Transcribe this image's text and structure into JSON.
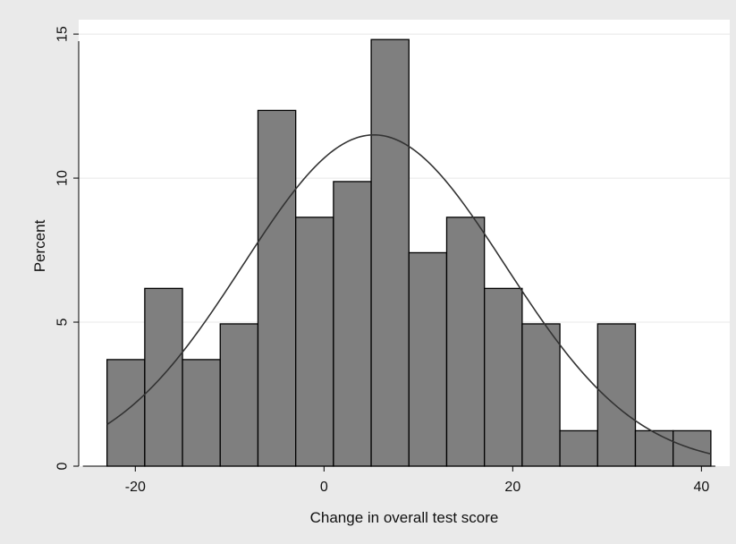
{
  "chart_data": {
    "type": "bar",
    "subtype": "histogram-with-normal-density-overlay",
    "xlabel": "Change in overall test score",
    "ylabel": "Percent",
    "xlim": [
      -26,
      43
    ],
    "ylim": [
      0,
      15.5
    ],
    "x_ticks": [
      -20,
      0,
      20,
      40
    ],
    "y_ticks": [
      0,
      5,
      10,
      15
    ],
    "grid": "horizontal",
    "bin_width": 4,
    "bins": [
      {
        "start": -23,
        "end": -19,
        "value": 3.7
      },
      {
        "start": -19,
        "end": -15,
        "value": 6.17
      },
      {
        "start": -15,
        "end": -11,
        "value": 3.7
      },
      {
        "start": -11,
        "end": -7,
        "value": 4.94
      },
      {
        "start": -7,
        "end": -3,
        "value": 12.35
      },
      {
        "start": -3,
        "end": 1,
        "value": 8.64
      },
      {
        "start": 1,
        "end": 5,
        "value": 9.88
      },
      {
        "start": 5,
        "end": 9,
        "value": 14.81
      },
      {
        "start": 9,
        "end": 13,
        "value": 7.41
      },
      {
        "start": 13,
        "end": 17,
        "value": 8.64
      },
      {
        "start": 17,
        "end": 21,
        "value": 6.17
      },
      {
        "start": 21,
        "end": 25,
        "value": 4.94
      },
      {
        "start": 25,
        "end": 29,
        "value": 1.23
      },
      {
        "start": 29,
        "end": 33,
        "value": 4.94
      },
      {
        "start": 33,
        "end": 37,
        "value": 1.23
      },
      {
        "start": 37,
        "end": 41,
        "value": 1.23
      }
    ],
    "normal_curve": {
      "mean": 5.3,
      "sd": 13.9,
      "peak": 11.5,
      "x_range": [
        -23,
        41
      ]
    },
    "colors": {
      "background": "#eaeaea",
      "plot_area": "#ffffff",
      "bar_fill": "#7f7f7f",
      "bar_stroke": "#000000",
      "curve": "#333333",
      "grid": "#e8e8e8"
    }
  }
}
